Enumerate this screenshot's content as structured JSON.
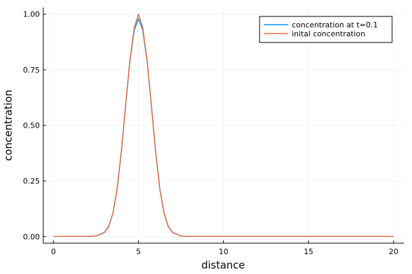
{
  "chart_data": {
    "type": "line",
    "title": "",
    "xlabel": "distance",
    "ylabel": "concentration",
    "xlim": [
      -0.6,
      20.6
    ],
    "ylim": [
      -0.03,
      1.03
    ],
    "xticks": [
      0,
      5,
      10,
      15,
      20
    ],
    "xtick_labels": [
      "0",
      "5",
      "10",
      "15",
      "20"
    ],
    "yticks": [
      0,
      0.25,
      0.5,
      0.75,
      1
    ],
    "ytick_labels": [
      "0.00",
      "0.25",
      "0.50",
      "0.75",
      "1.00"
    ],
    "grid": true,
    "legend_position": "top-right",
    "x": [
      0,
      2,
      2.5,
      3,
      3.25,
      3.5,
      3.75,
      4,
      4.25,
      4.5,
      4.75,
      5,
      5.25,
      5.5,
      5.75,
      6,
      6.25,
      6.5,
      6.75,
      7,
      7.5,
      8,
      10,
      15,
      20
    ],
    "series": [
      {
        "name": "concentration at t=0.1",
        "color": "#009AFA",
        "values": [
          0,
          0.0001,
          0.0022,
          0.019,
          0.046,
          0.106,
          0.218,
          0.389,
          0.597,
          0.791,
          0.928,
          0.98,
          0.928,
          0.791,
          0.597,
          0.389,
          0.218,
          0.106,
          0.046,
          0.019,
          0.0022,
          0.0001,
          0,
          0,
          0
        ]
      },
      {
        "name": "inital concentration",
        "color": "#E36F47",
        "values": [
          0,
          0.0001,
          0.0019,
          0.018,
          0.044,
          0.105,
          0.216,
          0.386,
          0.595,
          0.796,
          0.939,
          1.0,
          0.939,
          0.796,
          0.595,
          0.386,
          0.216,
          0.105,
          0.044,
          0.018,
          0.0019,
          0.0001,
          0,
          0,
          0
        ]
      }
    ]
  }
}
